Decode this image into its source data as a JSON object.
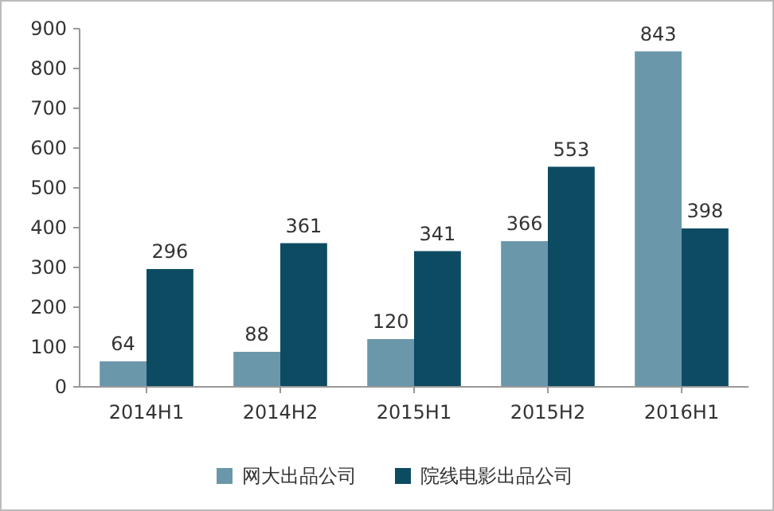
{
  "chart_data": {
    "type": "bar",
    "categories": [
      "2014H1",
      "2014H2",
      "2015H1",
      "2015H2",
      "2016H1"
    ],
    "series": [
      {
        "name": "网大出品公司",
        "color": "#6b97ab",
        "values": [
          64,
          88,
          120,
          366,
          843
        ]
      },
      {
        "name": "院线电影出品公司",
        "color": "#0d4b63",
        "values": [
          296,
          361,
          341,
          553,
          398
        ]
      }
    ],
    "ylim": [
      0,
      900
    ],
    "yticks": [
      0,
      100,
      200,
      300,
      400,
      500,
      600,
      700,
      800,
      900
    ],
    "data_labels": true,
    "legend": "bottom",
    "grid": false
  }
}
